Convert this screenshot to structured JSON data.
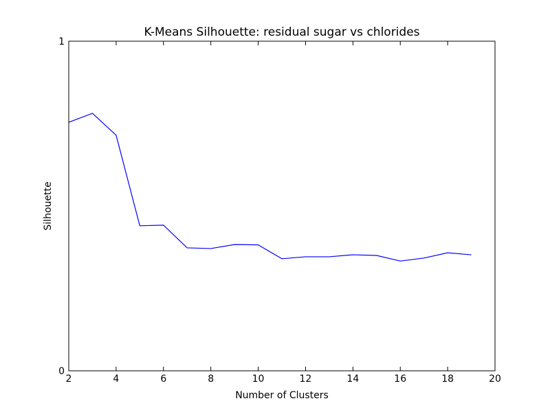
{
  "chart_data": {
    "type": "line",
    "title": "K-Means Silhouette: residual sugar vs chlorides",
    "x_label": "Number of Clusters",
    "y_label": "Silhouette",
    "x": [
      2,
      3,
      4,
      5,
      6,
      7,
      8,
      9,
      10,
      11,
      12,
      13,
      14,
      15,
      16,
      17,
      18,
      19
    ],
    "series": [
      {
        "name": "Silhouette",
        "color": "#0000ff",
        "values": [
          0.754,
          0.781,
          0.715,
          0.44,
          0.442,
          0.373,
          0.371,
          0.383,
          0.382,
          0.34,
          0.346,
          0.346,
          0.352,
          0.35,
          0.333,
          0.342,
          0.358,
          0.352
        ]
      }
    ],
    "xlim": [
      2,
      20
    ],
    "xticks": [
      2,
      4,
      6,
      8,
      10,
      12,
      14,
      16,
      18,
      20
    ],
    "ylim": [
      0,
      1
    ],
    "yticks": [
      0,
      1
    ],
    "grid": false
  }
}
